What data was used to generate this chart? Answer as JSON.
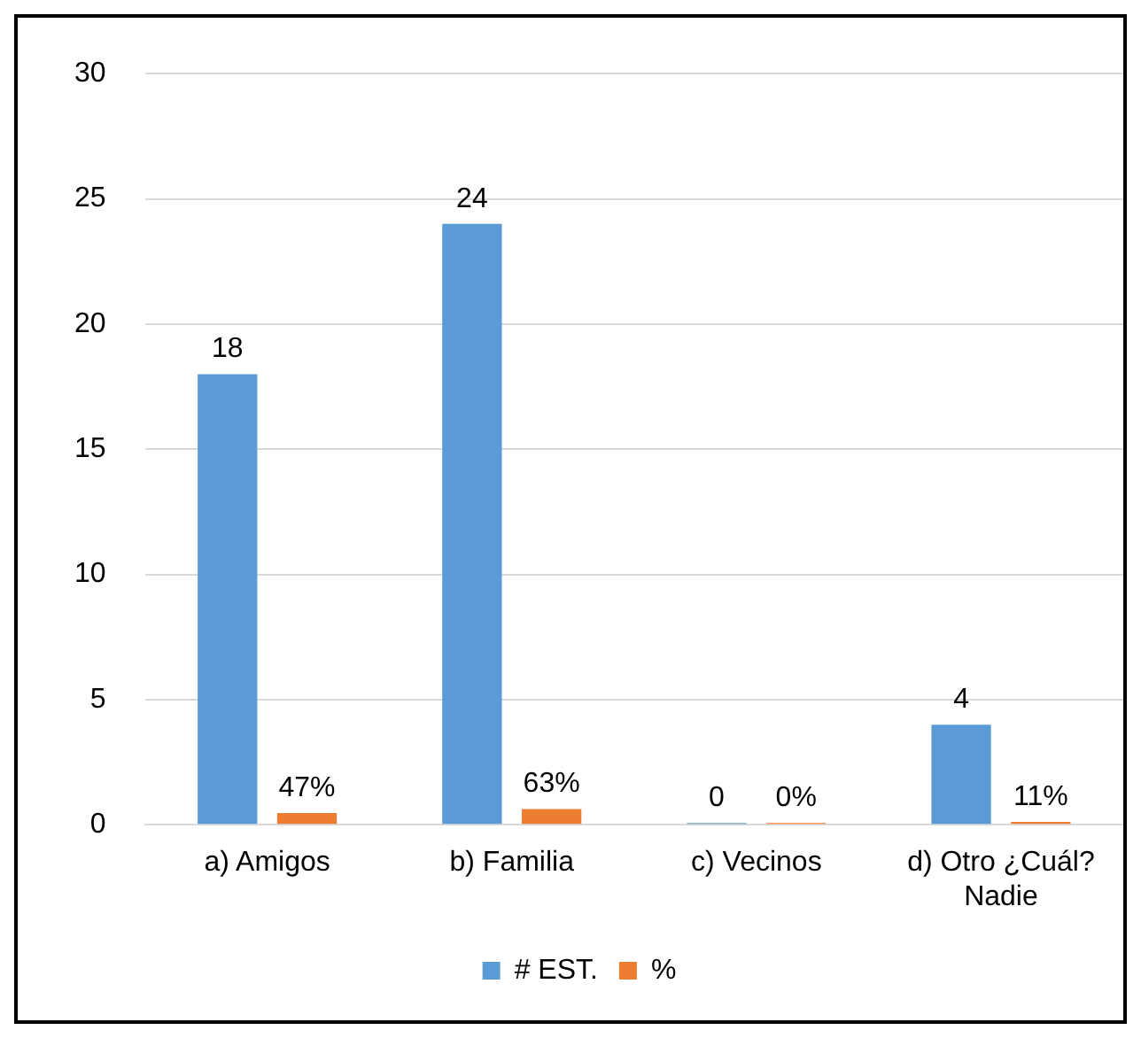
{
  "chart_data": {
    "type": "bar",
    "categories": [
      "a) Amigos",
      "b) Familia",
      "c) Vecinos",
      "d) Otro ¿Cuál? Nadie"
    ],
    "series": [
      {
        "name": "# EST.",
        "color": "#5b9bd5",
        "values": [
          18,
          24,
          0,
          4
        ],
        "value_labels": [
          "18",
          "24",
          "0",
          "4"
        ]
      },
      {
        "name": "%",
        "color": "#ed7d31",
        "values": [
          0.47,
          0.63,
          0,
          0.11
        ],
        "value_labels": [
          "47%",
          "63%",
          "0%",
          "11%"
        ]
      }
    ],
    "ylim": [
      0,
      30
    ],
    "yticks": [
      0,
      5,
      10,
      15,
      20,
      25,
      30
    ],
    "grid": "y",
    "legend": "bottom"
  }
}
